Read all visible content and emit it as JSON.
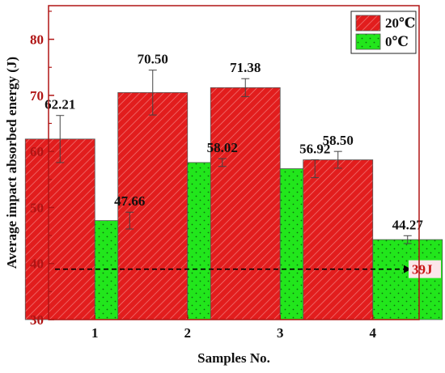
{
  "chart_data": {
    "type": "bar",
    "xlabel": "Samples No.",
    "ylabel": "Average impact absorbed energy (J)",
    "categories": [
      "1",
      "2",
      "3",
      "4"
    ],
    "ylim": [
      30,
      86
    ],
    "yticks": [
      30,
      40,
      50,
      60,
      70,
      80
    ],
    "series": [
      {
        "name": "20℃",
        "values": [
          62.21,
          70.5,
          71.38,
          58.5
        ],
        "labels": [
          "62.21",
          "70.50",
          "71.38",
          "58.50"
        ],
        "errors": [
          4.2,
          4.0,
          1.6,
          1.5
        ],
        "color": "#e21d1d",
        "pattern": "diagonal-hatch"
      },
      {
        "name": "0℃",
        "values": [
          47.66,
          58.02,
          56.92,
          44.27
        ],
        "labels": [
          "47.66",
          "58.02",
          "56.92",
          "44.27"
        ],
        "errors": [
          1.5,
          0.7,
          1.6,
          0.7
        ],
        "color": "#22e61c",
        "pattern": "dots"
      }
    ],
    "reference_line": {
      "value": 39,
      "label": "39J",
      "style": "dashed",
      "label_color": "#c81414"
    },
    "axis_color": "#b01515",
    "grid": false,
    "legend_position": "top-right"
  }
}
